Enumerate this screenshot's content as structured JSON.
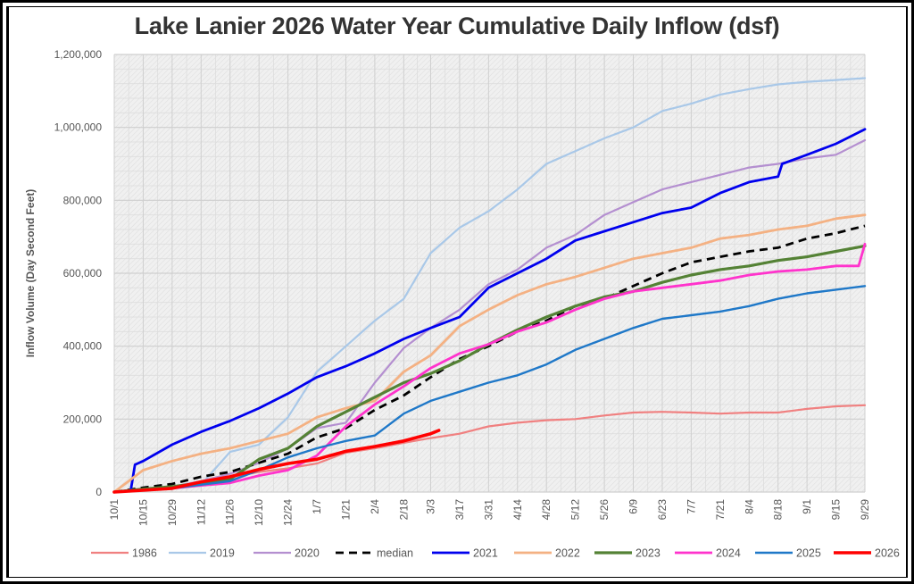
{
  "chart_data": {
    "type": "line",
    "title": "Lake Lanier 2026 Water Year Cumulative Daily Inflow (dsf)",
    "xlabel": "",
    "ylabel": "Inflow Volume (Day Second Feet)",
    "ylim": [
      0,
      1200000
    ],
    "yticks": [
      0,
      200000,
      400000,
      600000,
      800000,
      1000000,
      1200000
    ],
    "ytick_labels": [
      "0",
      "200,000",
      "400,000",
      "600,000",
      "800,000",
      "1,000,000",
      "1,200,000"
    ],
    "x_unit": "days since 10/1",
    "xlim": [
      0,
      363
    ],
    "xtick_days": [
      0,
      14,
      28,
      42,
      56,
      70,
      84,
      98,
      112,
      126,
      140,
      153,
      167,
      181,
      195,
      209,
      223,
      237,
      251,
      265,
      279,
      293,
      307,
      321,
      335,
      349,
      363
    ],
    "xtick_labels": [
      "10/1",
      "10/15",
      "10/29",
      "11/12",
      "11/26",
      "12/10",
      "12/24",
      "1/7",
      "1/21",
      "2/4",
      "2/18",
      "3/3",
      "3/17",
      "3/31",
      "4/14",
      "4/28",
      "5/12",
      "5/26",
      "6/9",
      "6/23",
      "7/7",
      "7/21",
      "8/4",
      "8/18",
      "9/1",
      "9/15",
      "9/29"
    ],
    "grid": true,
    "legend_position": "bottom",
    "series": [
      {
        "name": "1986",
        "color": "#f08080",
        "width": 2.2,
        "dash": "",
        "x": [
          0,
          14,
          28,
          42,
          56,
          70,
          84,
          98,
          112,
          126,
          140,
          153,
          167,
          181,
          195,
          209,
          223,
          237,
          251,
          265,
          279,
          293,
          307,
          321,
          335,
          349,
          363
        ],
        "values": [
          0,
          5000,
          12000,
          25000,
          40000,
          55000,
          65000,
          78000,
          108000,
          120000,
          135000,
          148000,
          160000,
          180000,
          190000,
          197000,
          200000,
          210000,
          218000,
          220000,
          218000,
          215000,
          218000,
          218000,
          228000,
          235000,
          238000
        ]
      },
      {
        "name": "2019",
        "color": "#a9c8e8",
        "width": 2.2,
        "dash": "",
        "x": [
          0,
          14,
          28,
          42,
          56,
          70,
          84,
          98,
          112,
          126,
          140,
          153,
          167,
          181,
          195,
          209,
          223,
          237,
          251,
          265,
          279,
          293,
          307,
          321,
          335,
          349,
          363
        ],
        "values": [
          0,
          10000,
          15000,
          20000,
          110000,
          130000,
          205000,
          330000,
          400000,
          470000,
          530000,
          655000,
          725000,
          770000,
          830000,
          900000,
          935000,
          970000,
          1000000,
          1045000,
          1065000,
          1090000,
          1105000,
          1118000,
          1125000,
          1130000,
          1135000
        ]
      },
      {
        "name": "2020",
        "color": "#b48fd0",
        "width": 2.2,
        "dash": "",
        "x": [
          0,
          14,
          28,
          42,
          56,
          70,
          84,
          98,
          112,
          126,
          140,
          153,
          167,
          181,
          195,
          209,
          223,
          237,
          251,
          265,
          279,
          293,
          307,
          321,
          335,
          349,
          363
        ],
        "values": [
          0,
          8000,
          15000,
          30000,
          50000,
          80000,
          120000,
          175000,
          190000,
          300000,
          395000,
          450000,
          500000,
          570000,
          610000,
          670000,
          705000,
          760000,
          795000,
          830000,
          850000,
          870000,
          890000,
          900000,
          915000,
          925000,
          965000
        ]
      },
      {
        "name": "median",
        "color": "#000000",
        "width": 2.8,
        "dash": "9,6",
        "x": [
          0,
          14,
          28,
          42,
          56,
          70,
          84,
          98,
          112,
          126,
          140,
          153,
          167,
          181,
          195,
          209,
          223,
          237,
          251,
          265,
          279,
          293,
          307,
          321,
          335,
          349,
          363
        ],
        "values": [
          0,
          12000,
          22000,
          42000,
          55000,
          80000,
          105000,
          150000,
          175000,
          225000,
          265000,
          315000,
          365000,
          400000,
          440000,
          470000,
          510000,
          530000,
          565000,
          600000,
          630000,
          645000,
          660000,
          670000,
          695000,
          710000,
          730000
        ]
      },
      {
        "name": "2021",
        "color": "#0000ee",
        "width": 2.8,
        "dash": "",
        "x": [
          0,
          8,
          10,
          14,
          28,
          42,
          56,
          70,
          84,
          98,
          112,
          126,
          140,
          153,
          167,
          181,
          195,
          209,
          223,
          237,
          251,
          265,
          279,
          293,
          307,
          321,
          323,
          335,
          349,
          363
        ],
        "values": [
          0,
          5000,
          75000,
          85000,
          130000,
          165000,
          195000,
          230000,
          270000,
          315000,
          345000,
          380000,
          420000,
          450000,
          480000,
          560000,
          600000,
          640000,
          690000,
          715000,
          740000,
          765000,
          780000,
          820000,
          850000,
          865000,
          900000,
          925000,
          955000,
          995000
        ]
      },
      {
        "name": "2022",
        "color": "#f4b183",
        "width": 2.8,
        "dash": "",
        "x": [
          0,
          14,
          28,
          42,
          56,
          70,
          84,
          98,
          112,
          126,
          140,
          153,
          167,
          181,
          195,
          209,
          223,
          237,
          251,
          265,
          279,
          293,
          307,
          321,
          335,
          349,
          363
        ],
        "values": [
          0,
          60000,
          85000,
          105000,
          120000,
          140000,
          160000,
          205000,
          230000,
          250000,
          330000,
          375000,
          455000,
          500000,
          540000,
          570000,
          590000,
          615000,
          640000,
          655000,
          670000,
          695000,
          705000,
          720000,
          730000,
          750000,
          760000
        ]
      },
      {
        "name": "2023",
        "color": "#548235",
        "width": 3.2,
        "dash": "",
        "x": [
          0,
          14,
          28,
          42,
          56,
          70,
          84,
          98,
          112,
          126,
          140,
          153,
          167,
          181,
          195,
          209,
          223,
          237,
          251,
          265,
          279,
          293,
          307,
          321,
          335,
          349,
          363
        ],
        "values": [
          0,
          8000,
          15000,
          25000,
          35000,
          90000,
          120000,
          180000,
          220000,
          260000,
          300000,
          325000,
          360000,
          405000,
          445000,
          480000,
          510000,
          535000,
          550000,
          575000,
          595000,
          610000,
          620000,
          635000,
          645000,
          660000,
          675000
        ]
      },
      {
        "name": "2024",
        "color": "#ff33cc",
        "width": 2.8,
        "dash": "",
        "x": [
          0,
          14,
          28,
          42,
          56,
          70,
          84,
          98,
          112,
          126,
          140,
          153,
          167,
          181,
          195,
          209,
          223,
          237,
          251,
          265,
          279,
          293,
          307,
          321,
          335,
          349,
          360,
          363
        ],
        "values": [
          0,
          5000,
          10000,
          18000,
          25000,
          45000,
          60000,
          100000,
          180000,
          240000,
          290000,
          340000,
          380000,
          405000,
          440000,
          465000,
          500000,
          530000,
          550000,
          560000,
          570000,
          580000,
          595000,
          605000,
          610000,
          620000,
          620000,
          680000
        ]
      },
      {
        "name": "2025",
        "color": "#1f78c8",
        "width": 2.4,
        "dash": "",
        "x": [
          0,
          14,
          28,
          42,
          56,
          70,
          84,
          98,
          112,
          126,
          140,
          153,
          167,
          181,
          195,
          209,
          223,
          237,
          251,
          265,
          279,
          293,
          307,
          321,
          335,
          349,
          363
        ],
        "values": [
          0,
          5000,
          10000,
          20000,
          30000,
          60000,
          95000,
          120000,
          140000,
          155000,
          215000,
          250000,
          275000,
          300000,
          320000,
          350000,
          390000,
          420000,
          450000,
          475000,
          485000,
          495000,
          510000,
          530000,
          545000,
          555000,
          565000
        ]
      },
      {
        "name": "2026",
        "color": "#ff0000",
        "width": 3.6,
        "dash": "",
        "x": [
          0,
          14,
          28,
          42,
          56,
          70,
          84,
          98,
          112,
          126,
          140,
          153,
          157
        ],
        "values": [
          0,
          5000,
          10000,
          28000,
          42000,
          62000,
          78000,
          90000,
          112000,
          125000,
          140000,
          160000,
          169000
        ]
      }
    ]
  }
}
